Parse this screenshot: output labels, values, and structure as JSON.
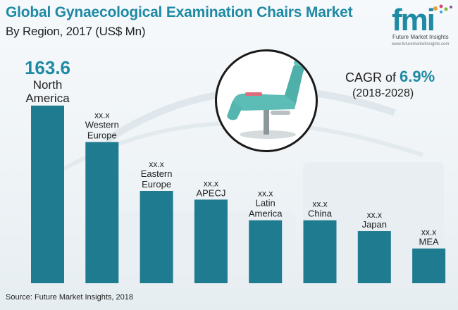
{
  "header": {
    "title": "Global Gynaecological Examination Chairs Market",
    "subtitle": "By Region, 2017 (US$ Mn)"
  },
  "logo": {
    "letters": "fmi",
    "name": "Future Market Insights",
    "url": "www.futuremarketinsights.com"
  },
  "cagr": {
    "prefix": "CAGR of",
    "value": "6.9%",
    "period": "(2018-2028)"
  },
  "footer": {
    "source": "Source: Future Market Insights, 2018"
  },
  "colors": {
    "bar": "#1f7b8f",
    "accent": "#1e8aa4",
    "text": "#222222"
  },
  "chart_data": {
    "type": "bar",
    "title": "Global Gynaecological Examination Chairs Market",
    "subtitle": "By Region, 2017 (US$ Mn)",
    "categories": [
      "North America",
      "Western Europe",
      "Eastern Europe",
      "APECJ",
      "Latin America",
      "China",
      "Japan",
      "MEA"
    ],
    "category_labels": [
      [
        "North",
        "America"
      ],
      [
        "Western",
        "Europe"
      ],
      [
        "Eastern",
        "Europe"
      ],
      [
        "APECJ"
      ],
      [
        "Latin",
        "America"
      ],
      [
        "China"
      ],
      [
        "Japan"
      ],
      [
        "MEA"
      ]
    ],
    "value_labels": [
      "163.6",
      "xx.x",
      "xx.x",
      "xx.x",
      "xx.x",
      "xx.x",
      "xx.x",
      "xx.x"
    ],
    "values": [
      163.6,
      130,
      85,
      77,
      58,
      58,
      48,
      32
    ],
    "ylim": [
      0,
      170
    ],
    "xlabel": "",
    "ylabel": "",
    "grid": false,
    "legend": "none"
  }
}
